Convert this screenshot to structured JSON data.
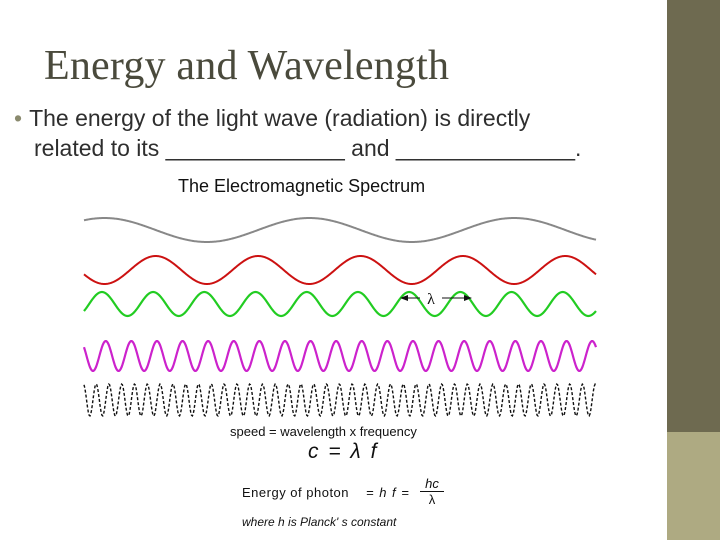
{
  "slide": {
    "title": "Energy and Wavelength",
    "bullet_line1": "The energy of the light wave (radiation) is directly",
    "bullet_line2": "related to its ______________ and ______________.",
    "bullet_symbol": "•"
  },
  "figure": {
    "title": "The Electromagnetic Spectrum",
    "lambda_label": "λ",
    "speed_text": "speed = wavelength x frequency",
    "equation_speed": "c  =  λ f",
    "energy_label": "Energy of photon",
    "energy_equation": "=  h f  =",
    "fraction_numerator": "hc",
    "fraction_denominator": "λ",
    "planck_note": "where h is Planck'   s constant",
    "waves": [
      {
        "color": "#888888",
        "cycles": 2.5
      },
      {
        "color": "#cc1111",
        "cycles": 5
      },
      {
        "color": "#22cc22",
        "cycles": 10
      },
      {
        "color": "#cc22cc",
        "cycles": 20
      },
      {
        "color": "#111111",
        "cycles": 40
      }
    ]
  },
  "theme": {
    "sidebar_color": "#6e6a50",
    "sidebar_accent": "#aeaa82",
    "title_color": "#4a4a3c"
  }
}
